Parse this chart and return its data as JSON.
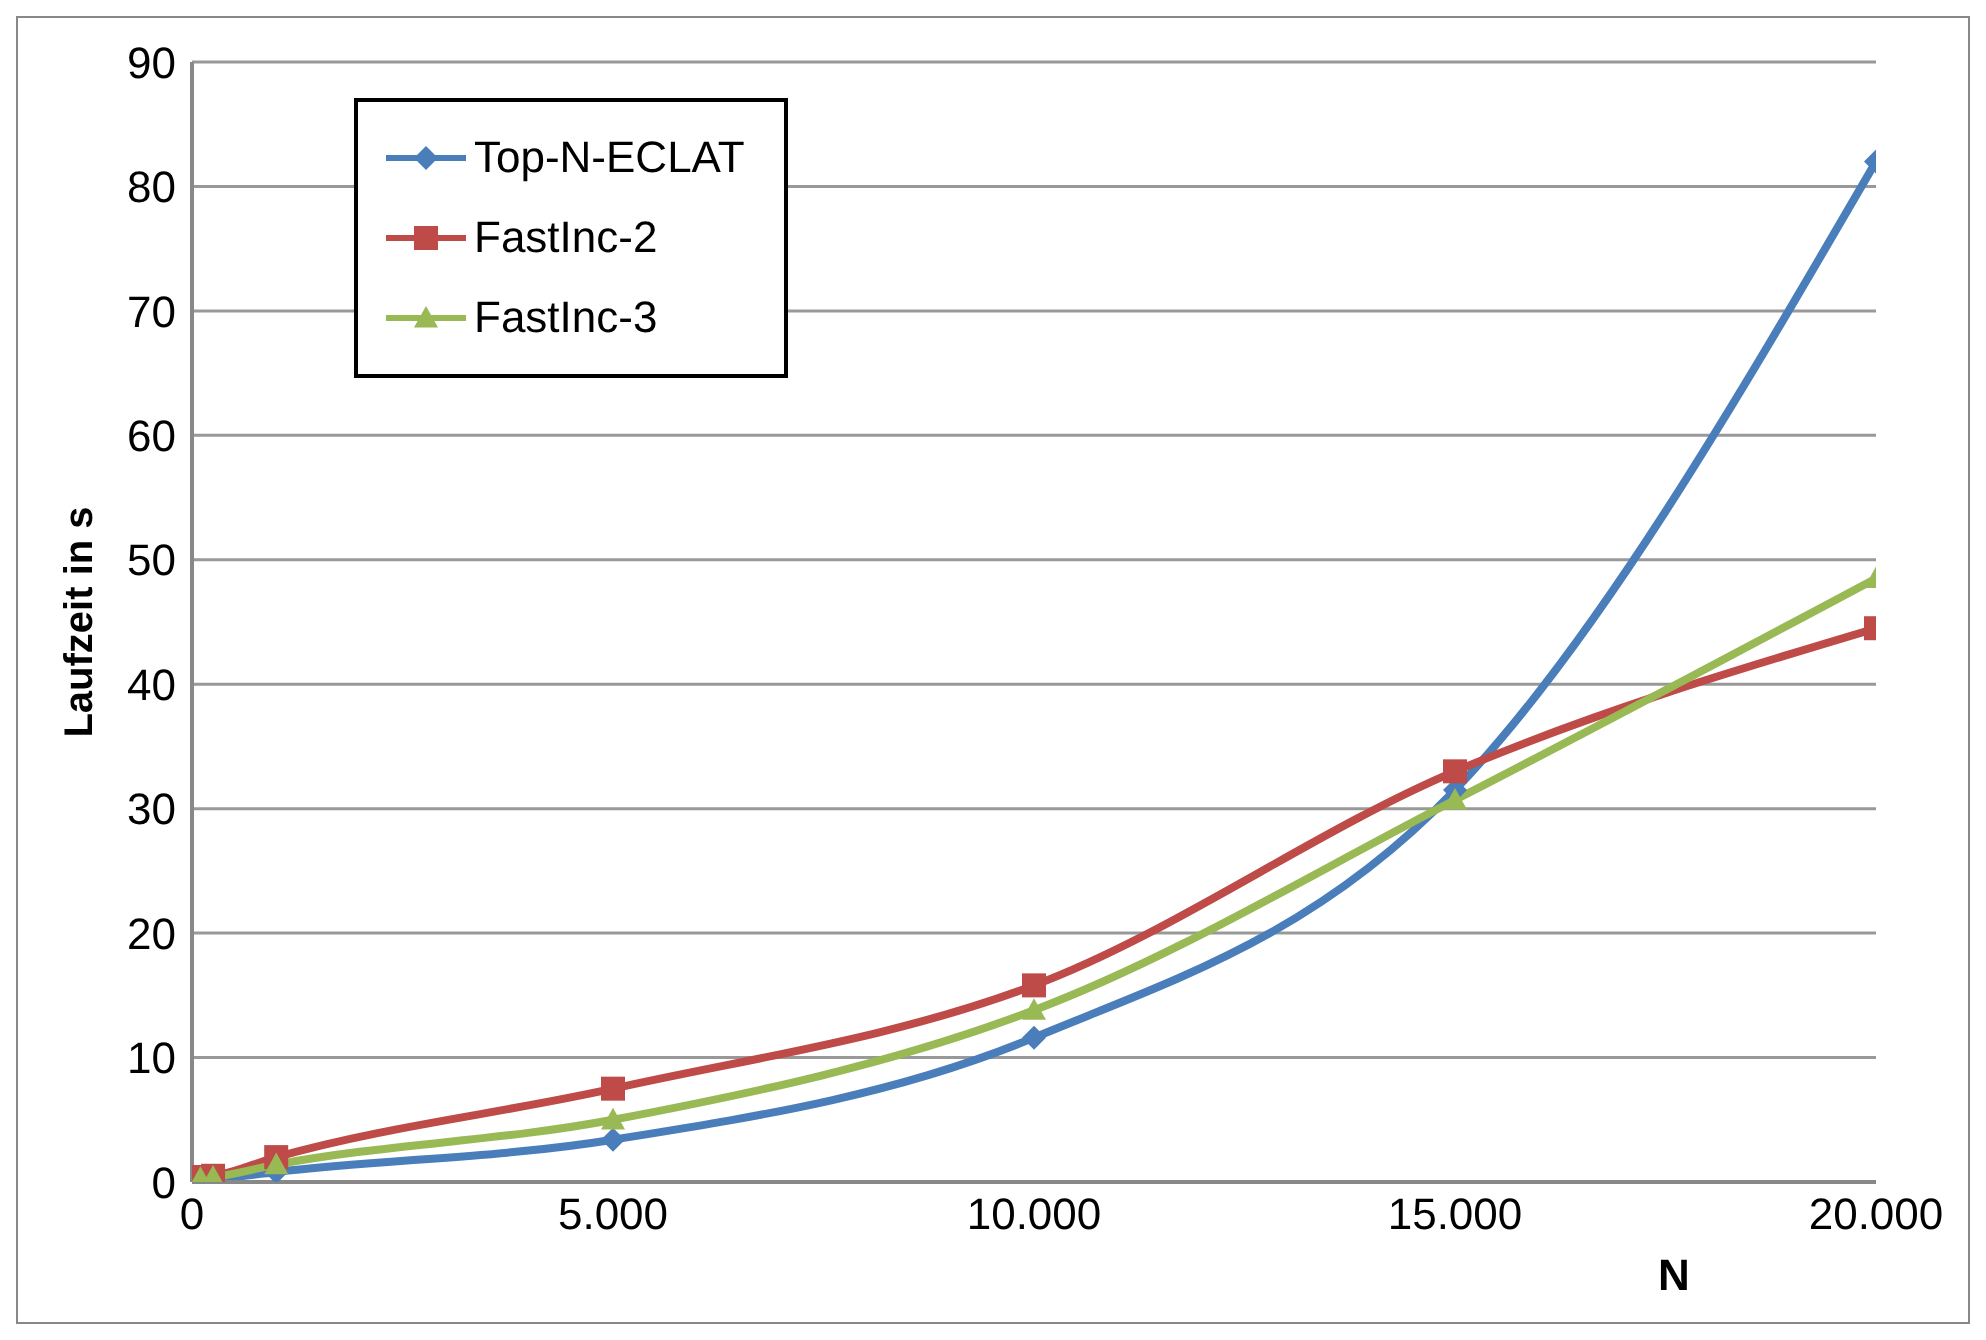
{
  "chart_data": {
    "type": "line",
    "ylabel": "Laufzeit in s",
    "xlabel": "N",
    "x": [
      100,
      250,
      1000,
      5000,
      10000,
      15000,
      20000
    ],
    "xlim": [
      0,
      20000
    ],
    "xticks": [
      0,
      {
        "value": 5000,
        "label": "5.000"
      },
      {
        "value": 10000,
        "label": "10.000"
      },
      {
        "value": 15000,
        "label": "15.000"
      },
      {
        "value": 20000,
        "label": "20.000"
      }
    ],
    "ylim": [
      0,
      90
    ],
    "yticks": [
      0,
      10,
      20,
      30,
      40,
      50,
      60,
      70,
      80,
      90
    ],
    "grid": "y",
    "legend": "top left",
    "series": [
      {
        "name": "Top-N-ECLAT",
        "color": "#4a7ebb",
        "marker": "diamond",
        "values": [
          0.1,
          0.2,
          0.8,
          3.4,
          11.6,
          31.5,
          82
        ]
      },
      {
        "name": "FastInc-2",
        "color": "#be4b48",
        "marker": "square",
        "values": [
          0.4,
          0.5,
          2.0,
          7.5,
          15.8,
          33,
          44.5
        ]
      },
      {
        "name": "FastInc-3",
        "color": "#98b954",
        "marker": "triangle",
        "values": [
          0.3,
          0.4,
          1.4,
          5,
          13.8,
          30.7,
          48.5
        ]
      }
    ]
  }
}
